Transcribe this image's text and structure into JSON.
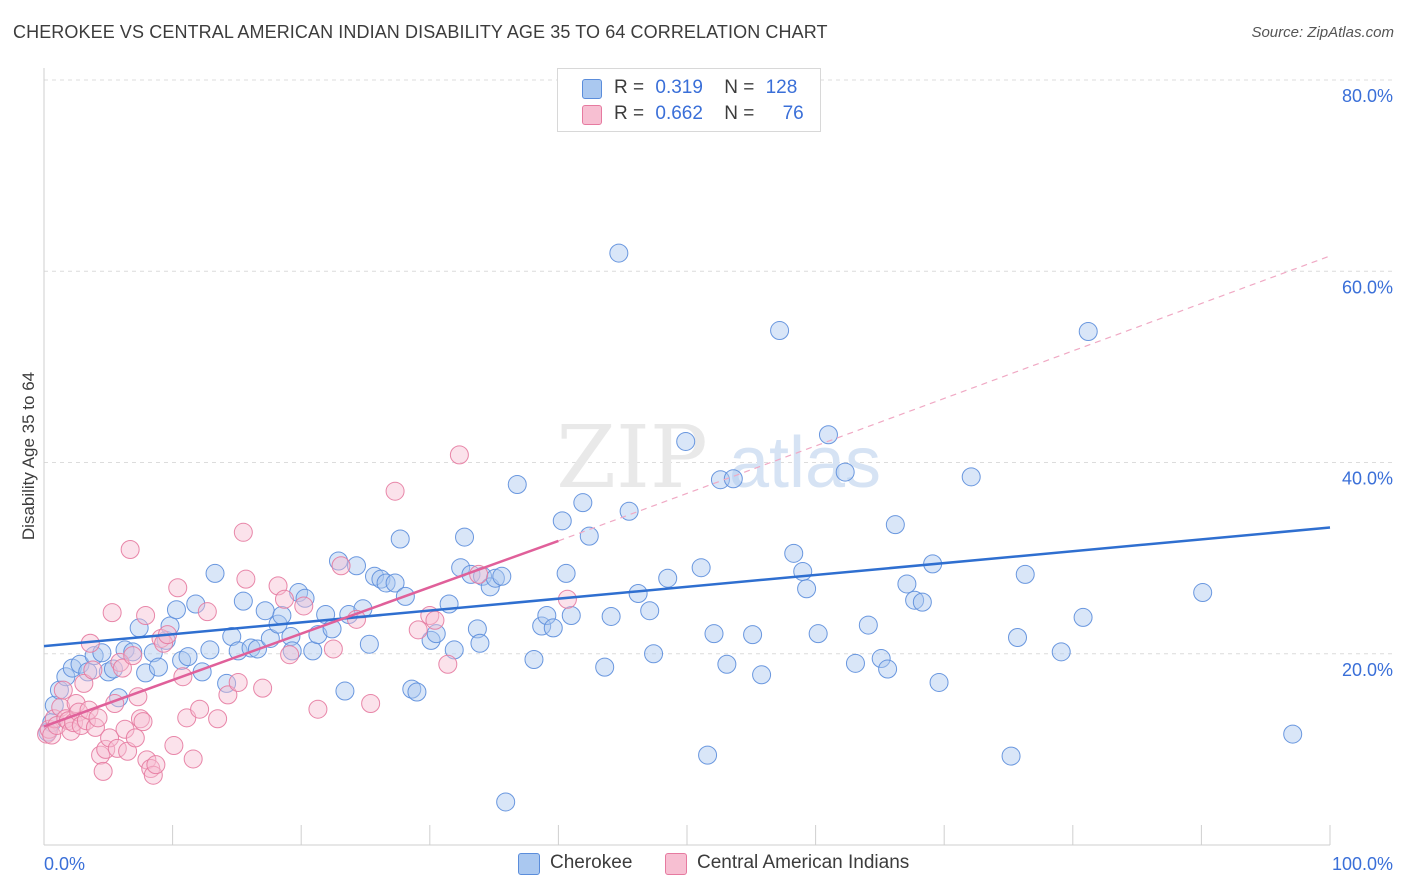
{
  "title": "CHEROKEE VS CENTRAL AMERICAN INDIAN DISABILITY AGE 35 TO 64 CORRELATION CHART",
  "source": "Source: ZipAtlas.com",
  "watermark": {
    "zip": "ZIP",
    "atlas": "atlas"
  },
  "legend": {
    "rows": [
      {
        "r_label": "R =",
        "r_value": "0.319",
        "n_label": "N =",
        "n_value": "128",
        "color": "#aac8f0",
        "edge": "#5b8ddb"
      },
      {
        "r_label": "R =",
        "r_value": "0.662",
        "n_label": "N =",
        "n_value": "76",
        "color": "#f7bfd2",
        "edge": "#e67aa0"
      }
    ]
  },
  "bottom_legend": [
    {
      "label": "Cherokee",
      "color": "#aac8f0",
      "edge": "#5b8ddb"
    },
    {
      "label": "Central American Indians",
      "color": "#f7bfd2",
      "edge": "#e67aa0"
    }
  ],
  "chart_data": {
    "type": "scatter",
    "title": "CHEROKEE VS CENTRAL AMERICAN INDIAN DISABILITY AGE 35 TO 64 CORRELATION CHART",
    "xlabel": "",
    "ylabel": "Disability Age 35 to 64",
    "xlim": [
      0,
      100
    ],
    "ylim": [
      0,
      80
    ],
    "x_tick_labels": [
      "0.0%",
      "100.0%"
    ],
    "y_ticks": [
      20,
      40,
      60,
      80
    ],
    "y_tick_labels": [
      "20.0%",
      "40.0%",
      "60.0%",
      "80.0%"
    ],
    "grid": true,
    "legend_position": "top-center",
    "series": [
      {
        "name": "Cherokee",
        "color": "#5b8ddb",
        "fill": "#aac8f0",
        "trend": {
          "x": [
            0,
            100
          ],
          "y": [
            20.8,
            33.2
          ],
          "color": "#2f6fd0"
        },
        "points": [
          [
            0.3,
            11.8
          ],
          [
            0.6,
            12.8
          ],
          [
            0.8,
            14.6
          ],
          [
            1.2,
            16.2
          ],
          [
            1.7,
            17.6
          ],
          [
            2.2,
            18.5
          ],
          [
            2.8,
            18.9
          ],
          [
            3.4,
            18.1
          ],
          [
            3.9,
            19.8
          ],
          [
            4.5,
            20.1
          ],
          [
            5.0,
            18.1
          ],
          [
            5.4,
            18.4
          ],
          [
            5.8,
            15.4
          ],
          [
            6.3,
            20.4
          ],
          [
            6.9,
            20.2
          ],
          [
            7.4,
            22.7
          ],
          [
            7.9,
            18.0
          ],
          [
            8.5,
            20.1
          ],
          [
            8.9,
            18.6
          ],
          [
            9.5,
            21.4
          ],
          [
            9.8,
            22.9
          ],
          [
            10.3,
            24.6
          ],
          [
            10.7,
            19.3
          ],
          [
            11.2,
            19.7
          ],
          [
            11.8,
            25.2
          ],
          [
            12.3,
            18.1
          ],
          [
            12.9,
            20.4
          ],
          [
            13.3,
            28.4
          ],
          [
            14.2,
            16.9
          ],
          [
            14.6,
            21.8
          ],
          [
            15.1,
            20.3
          ],
          [
            15.5,
            25.5
          ],
          [
            16.1,
            20.6
          ],
          [
            16.6,
            20.5
          ],
          [
            17.2,
            24.5
          ],
          [
            17.6,
            21.6
          ],
          [
            18.2,
            23.1
          ],
          [
            18.5,
            24.0
          ],
          [
            19.2,
            21.8
          ],
          [
            19.3,
            20.3
          ],
          [
            19.8,
            26.4
          ],
          [
            20.3,
            25.8
          ],
          [
            20.9,
            20.3
          ],
          [
            21.3,
            22.0
          ],
          [
            21.9,
            24.1
          ],
          [
            22.4,
            22.6
          ],
          [
            22.9,
            29.7
          ],
          [
            23.4,
            16.1
          ],
          [
            23.7,
            24.1
          ],
          [
            24.3,
            29.2
          ],
          [
            24.8,
            24.7
          ],
          [
            25.3,
            21.0
          ],
          [
            25.7,
            28.1
          ],
          [
            26.2,
            27.8
          ],
          [
            26.6,
            27.4
          ],
          [
            27.3,
            27.4
          ],
          [
            27.7,
            32.0
          ],
          [
            28.1,
            26.0
          ],
          [
            28.6,
            16.3
          ],
          [
            29.0,
            16.0
          ],
          [
            30.1,
            21.4
          ],
          [
            30.5,
            22.1
          ],
          [
            31.5,
            25.2
          ],
          [
            31.9,
            20.4
          ],
          [
            32.4,
            29.0
          ],
          [
            32.7,
            32.2
          ],
          [
            33.2,
            28.3
          ],
          [
            33.7,
            22.6
          ],
          [
            33.9,
            21.1
          ],
          [
            34.1,
            28.1
          ],
          [
            34.7,
            27.0
          ],
          [
            35.1,
            27.9
          ],
          [
            35.6,
            28.1
          ],
          [
            35.9,
            4.5
          ],
          [
            36.8,
            37.7
          ],
          [
            38.1,
            19.4
          ],
          [
            38.7,
            22.9
          ],
          [
            39.1,
            24.0
          ],
          [
            39.6,
            22.7
          ],
          [
            40.3,
            33.9
          ],
          [
            40.6,
            28.4
          ],
          [
            41.0,
            24.0
          ],
          [
            41.9,
            35.8
          ],
          [
            42.4,
            32.3
          ],
          [
            43.6,
            18.6
          ],
          [
            44.1,
            23.9
          ],
          [
            44.7,
            61.9
          ],
          [
            45.5,
            34.9
          ],
          [
            46.2,
            26.3
          ],
          [
            47.1,
            24.5
          ],
          [
            47.4,
            20.0
          ],
          [
            48.5,
            27.9
          ],
          [
            49.9,
            42.2
          ],
          [
            51.1,
            29.0
          ],
          [
            51.6,
            9.4
          ],
          [
            52.1,
            22.1
          ],
          [
            52.6,
            38.2
          ],
          [
            53.1,
            18.9
          ],
          [
            53.6,
            38.3
          ],
          [
            55.1,
            22.0
          ],
          [
            55.8,
            17.8
          ],
          [
            57.2,
            53.8
          ],
          [
            58.3,
            30.5
          ],
          [
            59.0,
            28.6
          ],
          [
            59.3,
            26.8
          ],
          [
            60.2,
            22.1
          ],
          [
            61.0,
            42.9
          ],
          [
            62.3,
            39.0
          ],
          [
            63.1,
            19.0
          ],
          [
            64.1,
            23.0
          ],
          [
            65.1,
            19.5
          ],
          [
            65.6,
            18.4
          ],
          [
            66.2,
            33.5
          ],
          [
            67.1,
            27.3
          ],
          [
            67.7,
            25.6
          ],
          [
            68.3,
            25.4
          ],
          [
            69.1,
            29.4
          ],
          [
            69.6,
            17.0
          ],
          [
            72.1,
            38.5
          ],
          [
            75.2,
            9.3
          ],
          [
            75.7,
            21.7
          ],
          [
            76.3,
            28.3
          ],
          [
            79.1,
            20.2
          ],
          [
            80.8,
            23.8
          ],
          [
            81.2,
            53.7
          ],
          [
            90.1,
            26.4
          ],
          [
            97.1,
            11.6
          ]
        ]
      },
      {
        "name": "Central American Indians",
        "color": "#e67aa0",
        "fill": "#f7bfd2",
        "trend": {
          "x": [
            0,
            40
          ],
          "y": [
            12.4,
            31.8
          ],
          "dashed_to": [
            100,
            61.6
          ],
          "color": "#e0609a"
        },
        "points": [
          [
            0.2,
            11.6
          ],
          [
            0.4,
            12.1
          ],
          [
            0.6,
            11.5
          ],
          [
            0.8,
            13.2
          ],
          [
            1.0,
            12.5
          ],
          [
            1.3,
            14.4
          ],
          [
            1.5,
            16.2
          ],
          [
            1.7,
            13.2
          ],
          [
            1.9,
            13.0
          ],
          [
            2.1,
            11.9
          ],
          [
            2.3,
            12.8
          ],
          [
            2.5,
            14.8
          ],
          [
            2.7,
            13.9
          ],
          [
            2.9,
            12.5
          ],
          [
            3.1,
            16.9
          ],
          [
            3.3,
            13.0
          ],
          [
            3.5,
            14.1
          ],
          [
            3.6,
            21.1
          ],
          [
            3.8,
            18.3
          ],
          [
            4.0,
            12.3
          ],
          [
            4.2,
            13.3
          ],
          [
            4.4,
            9.4
          ],
          [
            4.6,
            7.7
          ],
          [
            4.8,
            10.0
          ],
          [
            5.1,
            11.2
          ],
          [
            5.3,
            24.3
          ],
          [
            5.5,
            14.8
          ],
          [
            5.7,
            10.1
          ],
          [
            5.9,
            19.1
          ],
          [
            6.1,
            18.5
          ],
          [
            6.3,
            12.1
          ],
          [
            6.5,
            9.8
          ],
          [
            6.7,
            30.9
          ],
          [
            6.9,
            19.8
          ],
          [
            7.1,
            11.2
          ],
          [
            7.3,
            15.5
          ],
          [
            7.5,
            13.2
          ],
          [
            7.7,
            12.9
          ],
          [
            7.9,
            24.0
          ],
          [
            8.0,
            8.9
          ],
          [
            8.3,
            8.0
          ],
          [
            8.5,
            7.3
          ],
          [
            8.7,
            8.4
          ],
          [
            9.1,
            21.6
          ],
          [
            9.3,
            21.1
          ],
          [
            9.6,
            22.0
          ],
          [
            10.1,
            10.4
          ],
          [
            10.4,
            26.9
          ],
          [
            10.8,
            17.6
          ],
          [
            11.1,
            13.3
          ],
          [
            11.6,
            9.0
          ],
          [
            12.1,
            14.2
          ],
          [
            12.7,
            24.4
          ],
          [
            13.5,
            13.2
          ],
          [
            14.3,
            15.7
          ],
          [
            15.1,
            17.0
          ],
          [
            15.5,
            32.7
          ],
          [
            15.7,
            27.8
          ],
          [
            17.0,
            16.4
          ],
          [
            18.2,
            27.1
          ],
          [
            18.7,
            25.7
          ],
          [
            19.1,
            19.9
          ],
          [
            20.2,
            25.0
          ],
          [
            21.3,
            14.2
          ],
          [
            22.5,
            20.5
          ],
          [
            23.1,
            29.2
          ],
          [
            24.3,
            23.6
          ],
          [
            25.4,
            14.8
          ],
          [
            27.3,
            37.0
          ],
          [
            29.1,
            22.5
          ],
          [
            30.0,
            24.0
          ],
          [
            30.4,
            23.5
          ],
          [
            31.4,
            18.9
          ],
          [
            32.3,
            40.8
          ],
          [
            33.8,
            28.3
          ],
          [
            40.7,
            25.7
          ]
        ]
      }
    ]
  }
}
